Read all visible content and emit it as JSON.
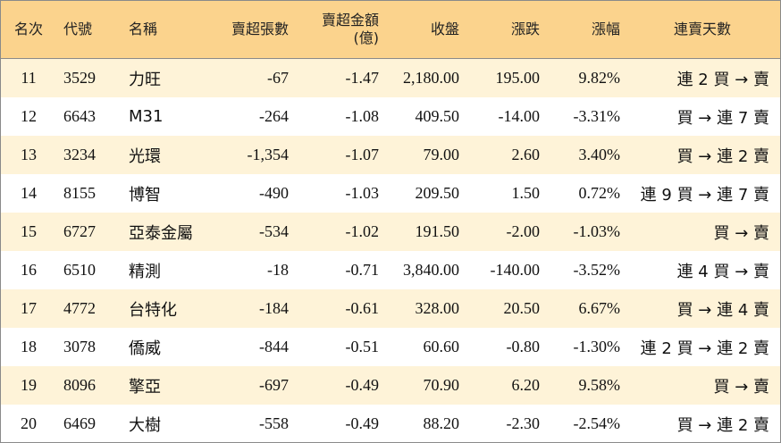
{
  "headers": {
    "rank": "名次",
    "code": "代號",
    "name": "名稱",
    "sell_shares": "賣超張數",
    "sell_amount_line1": "賣超金額",
    "sell_amount_line2": "(億)",
    "close": "收盤",
    "change": "漲跌",
    "change_pct": "漲幅",
    "streak": "連賣天數"
  },
  "colors": {
    "header_bg": "#fbd38d",
    "odd_row_bg": "#fef3d8",
    "up": "#e0001b",
    "down": "#0a8a1a"
  },
  "rows": [
    {
      "rank": "11",
      "code": "3529",
      "name": "力旺",
      "sell_shares": "-67",
      "sell_amount": "-1.47",
      "close": "2,180.00",
      "change": "195.00",
      "change_pct": "9.82%",
      "direction": "up",
      "streak": "連 2 買 → 賣"
    },
    {
      "rank": "12",
      "code": "6643",
      "name": "M31",
      "sell_shares": "-264",
      "sell_amount": "-1.08",
      "close": "409.50",
      "change": "-14.00",
      "change_pct": "-3.31%",
      "direction": "down",
      "streak": "買 → 連 7 賣"
    },
    {
      "rank": "13",
      "code": "3234",
      "name": "光環",
      "sell_shares": "-1,354",
      "sell_amount": "-1.07",
      "close": "79.00",
      "change": "2.60",
      "change_pct": "3.40%",
      "direction": "up",
      "streak": "買 → 連 2 賣"
    },
    {
      "rank": "14",
      "code": "8155",
      "name": "博智",
      "sell_shares": "-490",
      "sell_amount": "-1.03",
      "close": "209.50",
      "change": "1.50",
      "change_pct": "0.72%",
      "direction": "up",
      "streak": "連 9 買 → 連 7 賣"
    },
    {
      "rank": "15",
      "code": "6727",
      "name": "亞泰金屬",
      "sell_shares": "-534",
      "sell_amount": "-1.02",
      "close": "191.50",
      "change": "-2.00",
      "change_pct": "-1.03%",
      "direction": "down",
      "streak": "買 → 賣"
    },
    {
      "rank": "16",
      "code": "6510",
      "name": "精測",
      "sell_shares": "-18",
      "sell_amount": "-0.71",
      "close": "3,840.00",
      "change": "-140.00",
      "change_pct": "-3.52%",
      "direction": "down",
      "streak": "連 4 買 → 賣"
    },
    {
      "rank": "17",
      "code": "4772",
      "name": "台特化",
      "sell_shares": "-184",
      "sell_amount": "-0.61",
      "close": "328.00",
      "change": "20.50",
      "change_pct": "6.67%",
      "direction": "up",
      "streak": "買 → 連 4 賣"
    },
    {
      "rank": "18",
      "code": "3078",
      "name": "僑威",
      "sell_shares": "-844",
      "sell_amount": "-0.51",
      "close": "60.60",
      "change": "-0.80",
      "change_pct": "-1.30%",
      "direction": "down",
      "streak": "連 2 買 → 連 2 賣"
    },
    {
      "rank": "19",
      "code": "8096",
      "name": "擎亞",
      "sell_shares": "-697",
      "sell_amount": "-0.49",
      "close": "70.90",
      "change": "6.20",
      "change_pct": "9.58%",
      "direction": "up",
      "streak": "買 → 賣"
    },
    {
      "rank": "20",
      "code": "6469",
      "name": "大樹",
      "sell_shares": "-558",
      "sell_amount": "-0.49",
      "close": "88.20",
      "change": "-2.30",
      "change_pct": "-2.54%",
      "direction": "down",
      "streak": "買 → 連 2 賣"
    }
  ]
}
